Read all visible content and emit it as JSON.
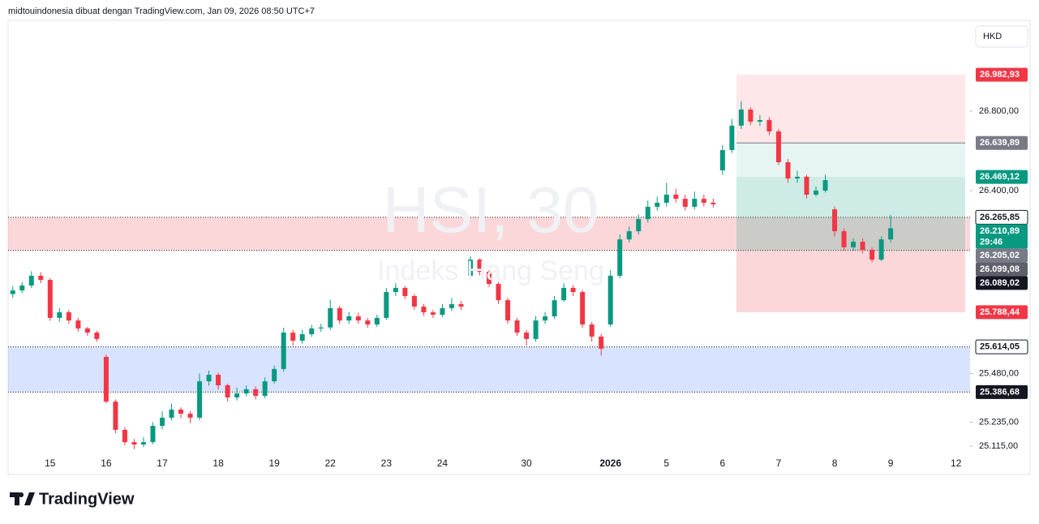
{
  "header": "midtouindonesia dibuat dengan TradingView.com, Jan 09, 2026 08:50 UTC+7",
  "currency_button": "HKD",
  "brand": "TradingView",
  "chart_data": {
    "type": "candlestick",
    "watermark_title": "HSI, 30",
    "watermark_subtitle": "Indeks Hang Seng",
    "categories": [
      null,
      null,
      null,
      null,
      "15",
      null,
      null,
      null,
      null,
      null,
      "16",
      null,
      null,
      null,
      null,
      null,
      "17",
      null,
      null,
      null,
      null,
      null,
      "18",
      null,
      null,
      null,
      null,
      null,
      "19",
      null,
      null,
      null,
      null,
      null,
      "22",
      null,
      null,
      null,
      null,
      null,
      "23",
      null,
      null,
      null,
      null,
      null,
      "24",
      null,
      null,
      null,
      null,
      null,
      null,
      null,
      null,
      "30",
      null,
      null,
      null,
      null,
      null,
      null,
      null,
      null,
      "2026",
      null,
      null,
      null,
      null,
      null,
      "5",
      null,
      null,
      null,
      null,
      null,
      "6",
      null,
      null,
      null,
      null,
      null,
      "7",
      null,
      null,
      null,
      null,
      null,
      "8",
      null,
      null,
      null,
      null,
      null,
      "9",
      null,
      null,
      null,
      null,
      null,
      null,
      "12",
      null
    ],
    "bold_category": "2026",
    "open": [
      25880,
      25898,
      25923,
      25972,
      25951,
      25760,
      25788,
      25747,
      25707,
      25686,
      25564,
      25339,
      25197,
      25135,
      25123,
      25135,
      25217,
      25258,
      25299,
      25278,
      25258,
      25441,
      25474,
      25421,
      25360,
      25380,
      25401,
      25368,
      25441,
      25503,
      25686,
      25645,
      25678,
      25707,
      25712,
      25809,
      25747,
      25768,
      25747,
      25727,
      25760,
      25890,
      25911,
      25870,
      25817,
      25788,
      25776,
      25809,
      25829,
      25972,
      26053,
      25992,
      25931,
      25849,
      25747,
      25686,
      25654,
      25747,
      25768,
      25849,
      25911,
      25890,
      25727,
      25666,
      25727,
      25972,
      26155,
      26196,
      26257,
      26319,
      26339,
      26380,
      26359,
      26319,
      26359,
      26339,
      26502,
      26604,
      26727,
      26808,
      26747,
      26755,
      26698,
      26543,
      26461,
      26470,
      26380,
      26400,
      26306,
      26196,
      26115,
      26143,
      26102,
      26053,
      26155,
      null,
      null,
      null,
      null,
      null,
      null,
      null,
      null
    ],
    "high": [
      25920,
      25940,
      25995,
      25990,
      25960,
      25810,
      25800,
      25760,
      25715,
      25695,
      25575,
      25350,
      25210,
      25150,
      25160,
      25235,
      25290,
      25330,
      25310,
      25290,
      25480,
      25495,
      25485,
      25430,
      25410,
      25420,
      25415,
      25460,
      25520,
      25710,
      25700,
      25700,
      25725,
      25730,
      25850,
      25820,
      25790,
      25785,
      25760,
      25775,
      25910,
      25935,
      25920,
      25880,
      25830,
      25800,
      25830,
      25860,
      25845,
      26070,
      26060,
      26000,
      25940,
      25860,
      25760,
      25700,
      25770,
      25790,
      25870,
      25935,
      25925,
      25900,
      25740,
      25680,
      26000,
      26180,
      26220,
      26280,
      26350,
      26370,
      26440,
      26410,
      26380,
      26395,
      26380,
      26360,
      26630,
      26760,
      26850,
      26820,
      26780,
      26770,
      26710,
      26560,
      26500,
      26480,
      26420,
      26480,
      26320,
      26210,
      26160,
      26160,
      26115,
      26170,
      26278,
      null,
      null,
      null,
      null,
      null,
      null,
      null,
      null
    ],
    "low": [
      25860,
      25885,
      25910,
      25935,
      25745,
      25740,
      25730,
      25690,
      25670,
      25640,
      25330,
      25180,
      25120,
      25100,
      25110,
      25125,
      25200,
      25245,
      25255,
      25230,
      25245,
      25420,
      25400,
      25340,
      25345,
      25365,
      25350,
      25355,
      25430,
      25490,
      25620,
      25630,
      25665,
      25690,
      25700,
      25730,
      25730,
      25730,
      25710,
      25715,
      25750,
      25870,
      25855,
      25800,
      25770,
      25760,
      25765,
      25795,
      25800,
      25960,
      25975,
      25915,
      25830,
      25730,
      25670,
      25620,
      25640,
      25730,
      25755,
      25840,
      25870,
      25710,
      25640,
      25570,
      25715,
      25960,
      26140,
      26180,
      26240,
      26300,
      26320,
      26340,
      26300,
      26305,
      26320,
      26315,
      26480,
      26590,
      26710,
      26730,
      26725,
      26680,
      26530,
      26440,
      26440,
      26360,
      26370,
      26390,
      26170,
      26100,
      26100,
      26085,
      26040,
      26045,
      26140,
      null,
      null,
      null,
      null,
      null,
      null,
      null,
      null
    ],
    "close": [
      25898,
      25923,
      25972,
      25951,
      25760,
      25788,
      25747,
      25707,
      25686,
      25654,
      25339,
      25197,
      25135,
      25123,
      25135,
      25217,
      25258,
      25299,
      25278,
      25258,
      25441,
      25474,
      25421,
      25360,
      25380,
      25401,
      25368,
      25441,
      25503,
      25686,
      25645,
      25678,
      25707,
      25712,
      25809,
      25747,
      25768,
      25747,
      25727,
      25760,
      25890,
      25911,
      25870,
      25817,
      25788,
      25776,
      25809,
      25829,
      25817,
      26053,
      25992,
      25931,
      25849,
      25747,
      25686,
      25654,
      25747,
      25768,
      25849,
      25911,
      25890,
      25727,
      25666,
      25605,
      25972,
      26155,
      26196,
      26257,
      26319,
      26339,
      26380,
      26359,
      26319,
      26359,
      26339,
      26331,
      26604,
      26727,
      26808,
      26747,
      26755,
      26698,
      26543,
      26461,
      26470,
      26380,
      26400,
      26453,
      26196,
      26115,
      26143,
      26102,
      26053,
      26155,
      26210.89,
      null,
      null,
      null,
      null,
      null,
      null,
      null,
      null
    ],
    "up_color": "#089981",
    "down_color": "#f23645",
    "ylim": [
      25066,
      27257
    ],
    "yticks": [
      {
        "value": 26800,
        "label": "26.800,00"
      },
      {
        "value": 26400,
        "label": "26.400,00"
      },
      {
        "value": 25480,
        "label": "25.480,00"
      },
      {
        "value": 25235,
        "label": "25.235,00"
      },
      {
        "value": 25115,
        "label": "25.115,00"
      }
    ],
    "zones": [
      {
        "top": 26265.85,
        "bottom": 26099.08,
        "color": "rgba(242,54,69,0.2)"
      },
      {
        "top": 25614.05,
        "bottom": 25386.68,
        "color": "rgba(41,98,255,0.18)"
      }
    ],
    "position_bands": [
      {
        "top": 26982.93,
        "bottom": 26639.89,
        "color": "rgba(242,54,69,0.12)"
      },
      {
        "top": 26639.89,
        "bottom": 26469.12,
        "color": "rgba(8,153,129,0.1)"
      },
      {
        "top": 26469.12,
        "bottom": 26099.08,
        "color": "rgba(8,153,129,0.2)"
      },
      {
        "top": 26099.08,
        "bottom": 25788.44,
        "color": "rgba(242,54,69,0.2)"
      }
    ],
    "price_labels": [
      {
        "value": 26982.93,
        "label": "26.982,93",
        "bg": "#f23645",
        "fg": "#ffffff"
      },
      {
        "value": 26639.89,
        "label": "26.639,89",
        "bg": "#787b86",
        "fg": "#ffffff"
      },
      {
        "value": 26469.12,
        "label": "26.469,12",
        "bg": "#089981",
        "fg": "#ffffff"
      },
      {
        "value": 26265.85,
        "label": "26.265,85",
        "bg": "#ffffff",
        "fg": "#131722"
      },
      {
        "value": 26210.89,
        "label": "26.210,89",
        "bg": "#089981",
        "fg": "#ffffff",
        "countdown": "29:46"
      },
      {
        "value": 26205.02,
        "label": "26.205,02",
        "bg": "#787b86",
        "fg": "#ffffff"
      },
      {
        "value": 26099.08,
        "label": "26.099,08",
        "bg": "#5d606b",
        "fg": "#ffffff"
      },
      {
        "value": 26089.02,
        "label": "26.089,02",
        "bg": "#131722",
        "fg": "#ffffff"
      },
      {
        "value": 25788.44,
        "label": "25.788,44",
        "bg": "#f23645",
        "fg": "#ffffff"
      },
      {
        "value": 25614.05,
        "label": "25.614,05",
        "bg": "#ffffff",
        "fg": "#131722"
      },
      {
        "value": 25386.68,
        "label": "25.386,68",
        "bg": "#131722",
        "fg": "#ffffff"
      }
    ]
  }
}
